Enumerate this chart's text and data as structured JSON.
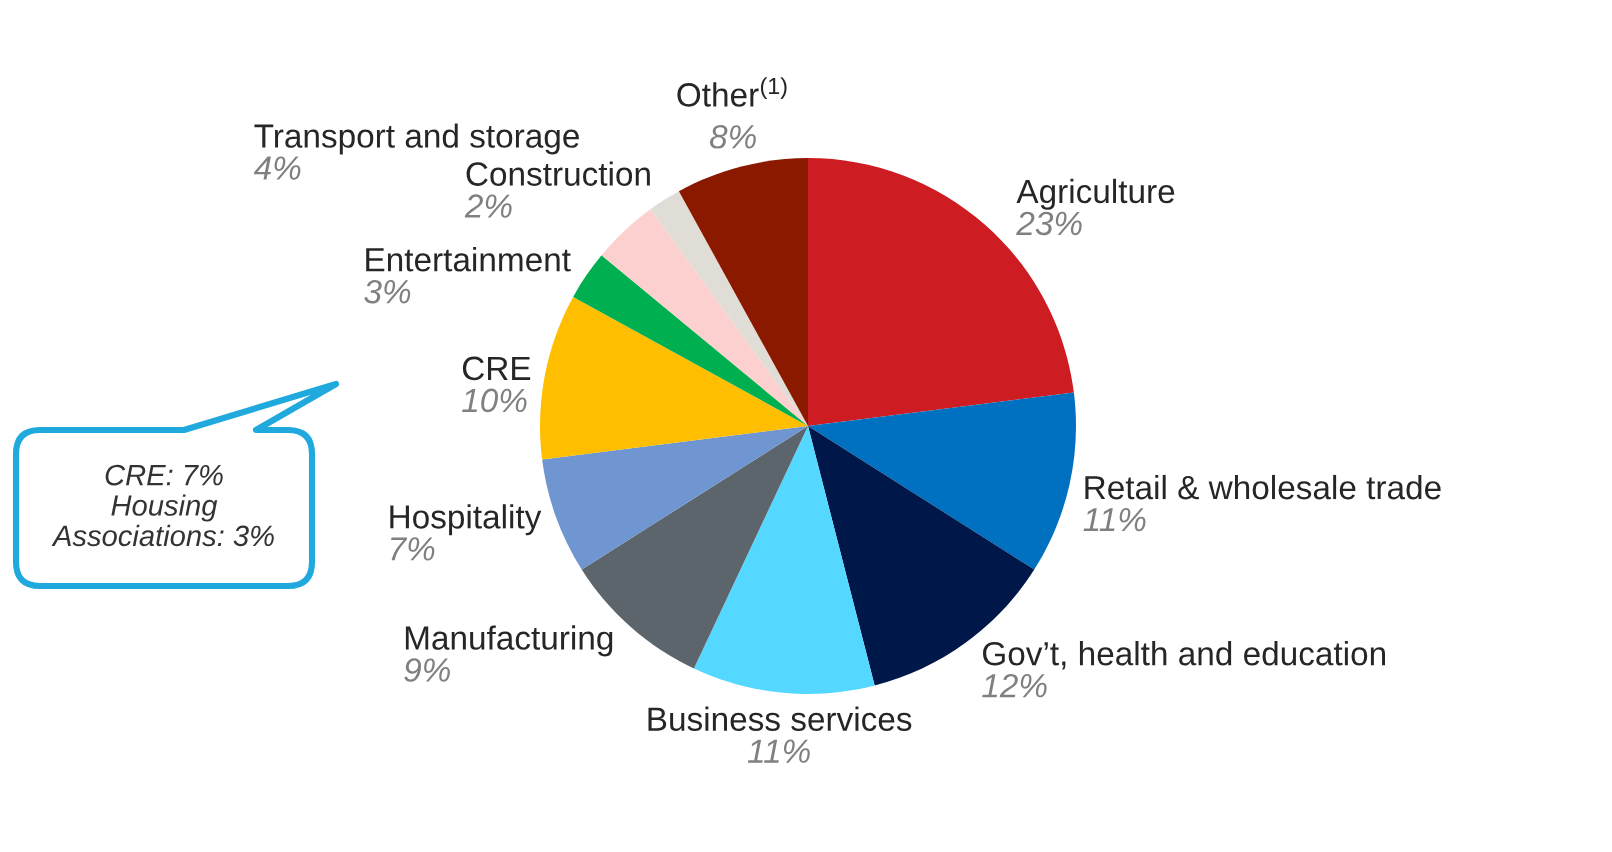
{
  "chart_data": {
    "type": "pie",
    "categories": [
      "Agriculture",
      "Retail & wholesale trade",
      "Gov’t, health and education",
      "Business services",
      "Manufacturing",
      "Hospitality",
      "CRE",
      "Entertainment",
      "Transport and storage",
      "Construction",
      "Other$^{(1)}$"
    ],
    "values": [
      23,
      11,
      12,
      11,
      9,
      7,
      10,
      3,
      4,
      2,
      8
    ],
    "colors": [
      "#cd1c22",
      "#0070c0",
      "#00174a",
      "#54d8ff",
      "#5c656b",
      "#6f96d1",
      "#ffbf00",
      "#00b050",
      "#fcd0ce",
      "#e0dcd6",
      "#8b1900"
    ],
    "value_labels": [
      "23%",
      "11%",
      "12%",
      "11%",
      "9%",
      "7%",
      "10%",
      "3%",
      "4%",
      "2%",
      "8%"
    ],
    "annotations": [
      "CRE: 7%\nHousing\nAssociations: 3%"
    ]
  }
}
